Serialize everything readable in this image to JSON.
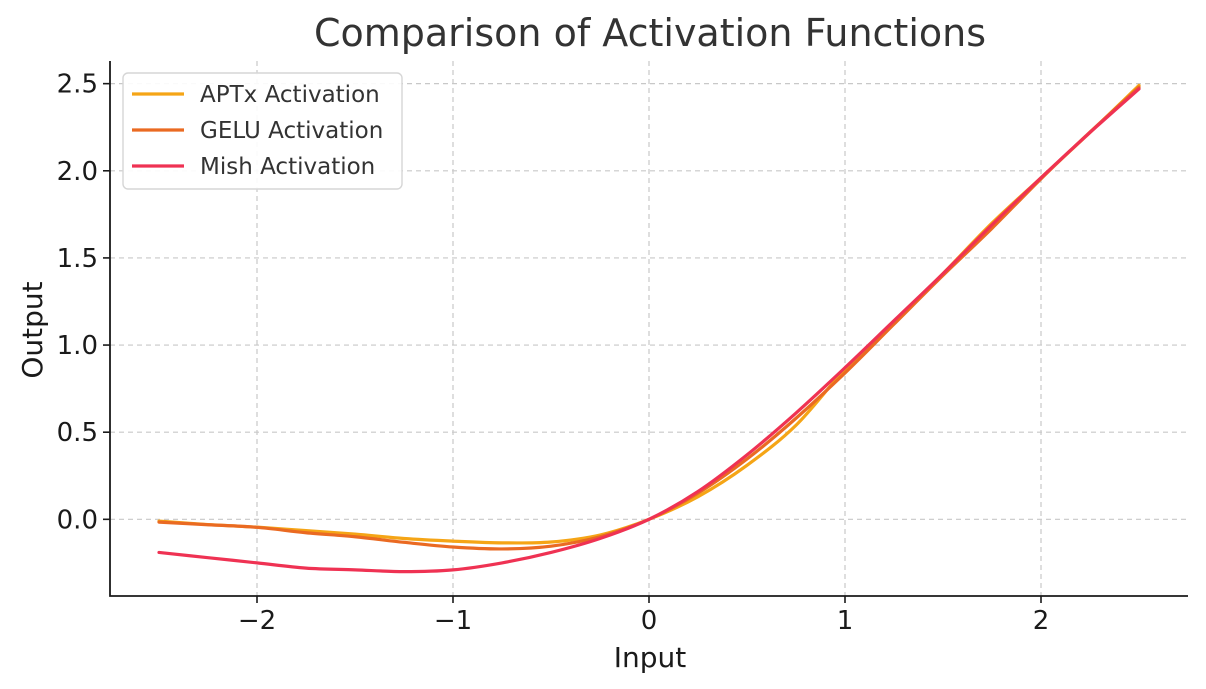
{
  "chart_data": {
    "type": "line",
    "title": "Comparison of Activation Functions",
    "xlabel": "Input",
    "ylabel": "Output",
    "xlim": [
      -2.75,
      2.75
    ],
    "ylim": [
      -0.44,
      2.63
    ],
    "grid": true,
    "legend_position": "top-left",
    "x_ticks": [
      {
        "value": -2,
        "label": "−2"
      },
      {
        "value": -1,
        "label": "−1"
      },
      {
        "value": 0,
        "label": "0"
      },
      {
        "value": 1,
        "label": "1"
      },
      {
        "value": 2,
        "label": "2"
      }
    ],
    "y_ticks": [
      {
        "value": 0.0,
        "label": "0.0"
      },
      {
        "value": 0.5,
        "label": "0.5"
      },
      {
        "value": 1.0,
        "label": "1.0"
      },
      {
        "value": 1.5,
        "label": "1.5"
      },
      {
        "value": 2.0,
        "label": "2.0"
      },
      {
        "value": 2.5,
        "label": "2.5"
      }
    ],
    "x": [
      -2.5,
      -2.25,
      -2.0,
      -1.75,
      -1.5,
      -1.25,
      -1.0,
      -0.75,
      -0.5,
      -0.25,
      0.0,
      0.25,
      0.5,
      0.75,
      1.0,
      1.25,
      1.5,
      1.75,
      2.0,
      2.25,
      2.5
    ],
    "series": [
      {
        "name": "APTx Activation",
        "color": "#f5a516",
        "values": [
          -0.01,
          -0.03,
          -0.045,
          -0.065,
          -0.085,
          -0.11,
          -0.125,
          -0.135,
          -0.13,
          -0.09,
          0.0,
          0.13,
          0.31,
          0.54,
          0.86,
          1.13,
          1.41,
          1.7,
          1.96,
          2.22,
          2.49
        ]
      },
      {
        "name": "GELU Activation",
        "color": "#ea6a22",
        "values": [
          -0.016,
          -0.031,
          -0.046,
          -0.077,
          -0.1,
          -0.132,
          -0.159,
          -0.17,
          -0.154,
          -0.1,
          0.0,
          0.15,
          0.346,
          0.58,
          0.84,
          1.12,
          1.4,
          1.67,
          1.954,
          2.222,
          2.48
        ]
      },
      {
        "name": "Mish Activation",
        "color": "#ef3253",
        "values": [
          -0.19,
          -0.22,
          -0.25,
          -0.28,
          -0.29,
          -0.3,
          -0.29,
          -0.25,
          -0.19,
          -0.11,
          0.0,
          0.16,
          0.37,
          0.61,
          0.87,
          1.14,
          1.41,
          1.69,
          1.96,
          2.22,
          2.47
        ]
      }
    ]
  }
}
